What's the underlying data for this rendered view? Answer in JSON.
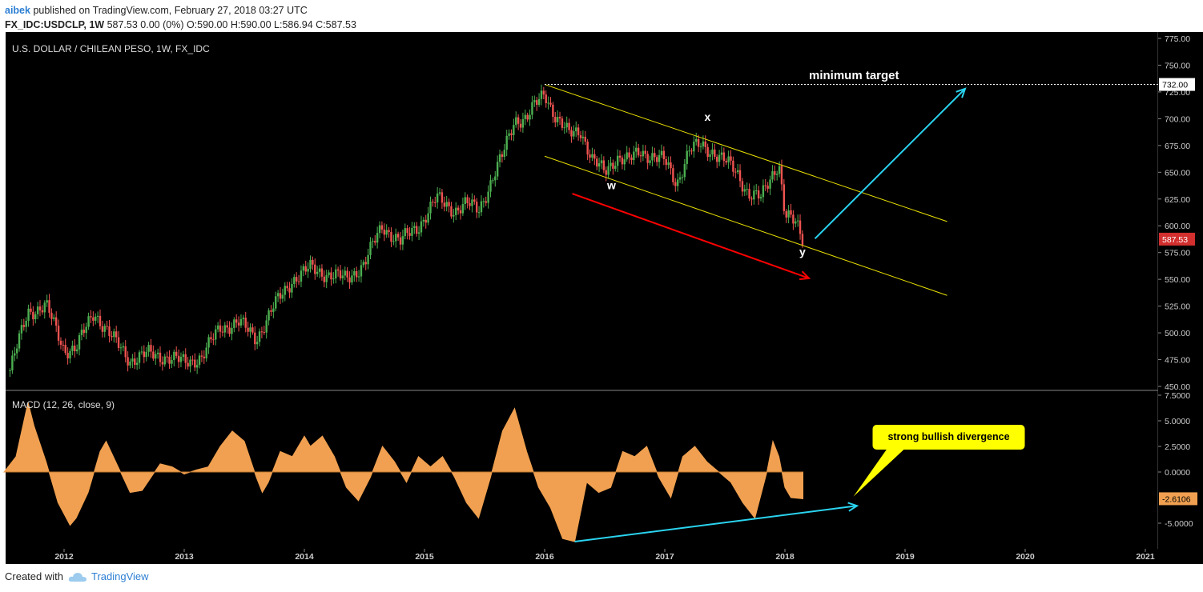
{
  "header": {
    "author": "aibek",
    "published": "published on TradingView.com, February 27, 2018 03:27 UTC",
    "symbol": "FX_IDC:USDCLP, 1W",
    "quote": "587.53 0.00 (0%) O:590.00 H:590.00 L:586.94 C:587.53"
  },
  "footer": {
    "created_with": "Created with",
    "brand": "TradingView"
  },
  "colors": {
    "background": "#000000",
    "up": "#4caf50",
    "down": "#ef5350",
    "macd": "#f0a050",
    "channel": "#e8e000",
    "arrow_down": "#ff0000",
    "arrow_up": "#2ad4f0",
    "callout": "#ffff00",
    "price_tag": "#d32f2f",
    "macd_tag": "#f0a050"
  },
  "chart_data": [
    {
      "type": "candlestick",
      "title": "U.S. DOLLAR / CHILEAN PESO, 1W, FX_IDC",
      "ylim": [
        450,
        775
      ],
      "yticks": [
        "775.00",
        "750.00",
        "725.00",
        "700.00",
        "675.00",
        "650.00",
        "625.00",
        "600.00",
        "575.00",
        "550.00",
        "525.00",
        "500.00",
        "475.00",
        "450.00"
      ],
      "xticks": [
        "2012",
        "2013",
        "2014",
        "2015",
        "2016",
        "2017",
        "2018",
        "2019",
        "2020",
        "2021"
      ],
      "x": [
        2011.55,
        2011.7,
        2011.85,
        2012.0,
        2012.1,
        2012.25,
        2012.4,
        2012.55,
        2012.7,
        2012.85,
        2013.0,
        2013.15,
        2013.3,
        2013.45,
        2013.6,
        2013.75,
        2013.9,
        2014.05,
        2014.2,
        2014.35,
        2014.5,
        2014.65,
        2014.8,
        2014.95,
        2015.1,
        2015.25,
        2015.35,
        2015.45,
        2015.55,
        2015.65,
        2015.75,
        2015.85,
        2016.0,
        2016.1,
        2016.2,
        2016.3,
        2016.4,
        2016.5,
        2016.6,
        2016.7,
        2016.8,
        2016.9,
        2017.0,
        2017.1,
        2017.2,
        2017.3,
        2017.4,
        2017.5,
        2017.6,
        2017.7,
        2017.8,
        2017.9,
        2017.95,
        2018.0,
        2018.1,
        2018.15
      ],
      "close": [
        465,
        520,
        525,
        485,
        485,
        520,
        495,
        475,
        480,
        478,
        472,
        478,
        505,
        510,
        495,
        525,
        550,
        560,
        555,
        550,
        565,
        600,
        585,
        600,
        625,
        615,
        620,
        615,
        640,
        665,
        700,
        700,
        725,
        700,
        685,
        690,
        660,
        650,
        665,
        660,
        670,
        665,
        660,
        640,
        670,
        675,
        670,
        660,
        650,
        630,
        625,
        650,
        660,
        610,
        600,
        587.53
      ],
      "annotations": [
        "minimum target",
        "w",
        "x",
        "y"
      ],
      "hline": 732.0,
      "price_label": "732.00",
      "last_price_label": "587.53",
      "channel_upper": {
        "x": [
          2016.0,
          2019.35
        ],
        "y": [
          732,
          604
        ]
      },
      "channel_lower": {
        "x": [
          2016.0,
          2019.35
        ],
        "y": [
          665,
          535
        ]
      },
      "arrow_down": {
        "x": [
          2016.23,
          2018.2
        ],
        "y": [
          630,
          551
        ]
      },
      "arrow_up": {
        "x": [
          2018.25,
          2019.5
        ],
        "y": [
          588,
          728
        ]
      }
    },
    {
      "type": "area",
      "title": "MACD (12, 26, close, 9)",
      "ylim": [
        -7.5,
        7.5
      ],
      "yticks": [
        "7.5000",
        "5.0000",
        "2.5000",
        "0.0000",
        "-5.0000"
      ],
      "last_value_label": "-2.6106",
      "annotation": "strong bullish divergence",
      "x": [
        2011.5,
        2011.6,
        2011.7,
        2011.75,
        2011.85,
        2011.95,
        2012.05,
        2012.1,
        2012.2,
        2012.3,
        2012.35,
        2012.45,
        2012.55,
        2012.65,
        2012.8,
        2012.9,
        2013.0,
        2013.1,
        2013.2,
        2013.3,
        2013.4,
        2013.5,
        2013.6,
        2013.65,
        2013.7,
        2013.8,
        2013.9,
        2014.0,
        2014.05,
        2014.15,
        2014.25,
        2014.35,
        2014.45,
        2014.55,
        2014.65,
        2014.75,
        2014.85,
        2014.95,
        2015.05,
        2015.15,
        2015.25,
        2015.35,
        2015.45,
        2015.55,
        2015.65,
        2015.75,
        2015.85,
        2015.95,
        2016.05,
        2016.15,
        2016.25,
        2016.35,
        2016.45,
        2016.55,
        2016.65,
        2016.75,
        2016.85,
        2016.95,
        2017.05,
        2017.15,
        2017.25,
        2017.35,
        2017.45,
        2017.55,
        2017.65,
        2017.75,
        2017.85,
        2017.9,
        2017.95,
        2018.0,
        2018.05,
        2018.15
      ],
      "values": [
        0,
        1.5,
        6.8,
        4.5,
        1,
        -3,
        -5.2,
        -4.5,
        -2,
        2,
        3,
        0.5,
        -2,
        -1.8,
        0.8,
        0.5,
        -0.2,
        0.2,
        0.5,
        2.5,
        4,
        3,
        -0.5,
        -2,
        -1,
        2,
        1.5,
        3.5,
        2.5,
        3.5,
        1.5,
        -1.5,
        -2.8,
        -0.5,
        2.5,
        1,
        -1,
        1.5,
        0.5,
        1.5,
        -0.5,
        -3,
        -4.5,
        -0.5,
        4,
        6.2,
        2,
        -1.5,
        -3.5,
        -6.5,
        -6.8,
        -1,
        -2,
        -1.5,
        2,
        1.5,
        2.5,
        -0.5,
        -2.5,
        1.5,
        2.5,
        1,
        0,
        -1,
        -3,
        -4.5,
        0,
        3,
        1.5,
        -1.5,
        -2.5,
        -2.6106
      ]
    }
  ]
}
